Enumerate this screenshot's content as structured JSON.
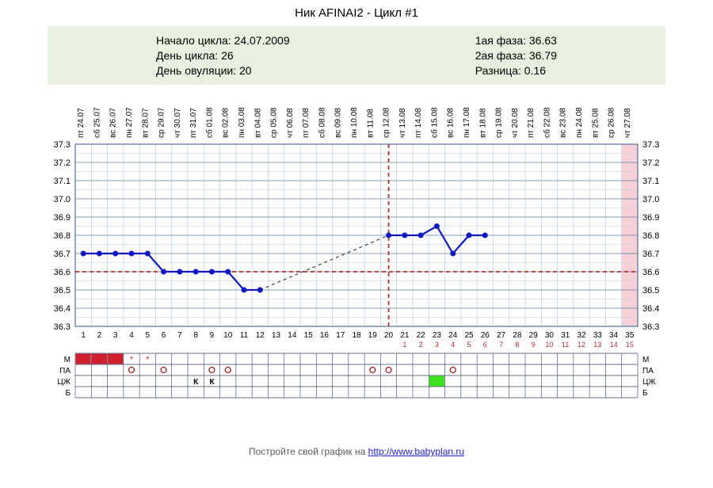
{
  "title": "Ник AFINAI2 - Цикл #1",
  "info_left": [
    "Начало цикла: 24.07.2009",
    "День цикла: 26",
    "День овуляции: 20"
  ],
  "info_right": [
    "1ая фаза: 36.63",
    "2ая фаза: 36.79",
    "Разница: 0.16"
  ],
  "footer_text": "Постройте свой график на ",
  "footer_url": "http://www.babyplan.ru",
  "chart": {
    "days": [
      "пт",
      "сб",
      "вс",
      "пн",
      "вт",
      "ср",
      "чт",
      "пт",
      "сб",
      "вс",
      "пн",
      "вт",
      "ср",
      "чт",
      "пт",
      "сб",
      "вс",
      "пн",
      "вт",
      "ср",
      "чт",
      "пт",
      "сб",
      "вс",
      "пн",
      "вт",
      "ср",
      "чт",
      "пт",
      "сб",
      "вс",
      "пн",
      "вт",
      "ср",
      "чт"
    ],
    "dates": [
      "24.07",
      "25.07",
      "26.07",
      "27.07",
      "28.07",
      "29.07",
      "30.07",
      "31.07",
      "01.08",
      "02.08",
      "03.08",
      "04.08",
      "05.08",
      "06.08",
      "07.08",
      "08.08",
      "09.08",
      "10.08",
      "11.08",
      "12.08",
      "13.08",
      "14.08",
      "15.08",
      "16.08",
      "17.08",
      "18.08",
      "19.08",
      "20.08",
      "21.08",
      "22.08",
      "23.08",
      "24.08",
      "25.08",
      "26.08",
      "27.08"
    ],
    "y_ticks": [
      37.3,
      37.2,
      37.1,
      37.0,
      36.9,
      36.8,
      36.7,
      36.6,
      36.5,
      36.4,
      36.3
    ],
    "ymin": 36.3,
    "ymax": 37.3,
    "series": [
      {
        "day": 1,
        "val": 36.7
      },
      {
        "day": 2,
        "val": 36.7
      },
      {
        "day": 3,
        "val": 36.7
      },
      {
        "day": 4,
        "val": 36.7
      },
      {
        "day": 5,
        "val": 36.7
      },
      {
        "day": 6,
        "val": 36.6
      },
      {
        "day": 7,
        "val": 36.6
      },
      {
        "day": 8,
        "val": 36.6
      },
      {
        "day": 9,
        "val": 36.6
      },
      {
        "day": 10,
        "val": 36.6
      },
      {
        "day": 11,
        "val": 36.5
      },
      {
        "day": 12,
        "val": 36.5
      }
    ],
    "series2": [
      {
        "day": 20,
        "val": 36.8
      },
      {
        "day": 21,
        "val": 36.8
      },
      {
        "day": 22,
        "val": 36.8
      },
      {
        "day": 23,
        "val": 36.85
      },
      {
        "day": 24,
        "val": 36.7
      },
      {
        "day": 25,
        "val": 36.8
      },
      {
        "day": 26,
        "val": 36.8
      }
    ],
    "dash_from": {
      "day": 12,
      "val": 36.5
    },
    "dash_to": {
      "day": 20,
      "val": 36.8
    },
    "coverline": 36.6,
    "ov_day": 20,
    "n_days": 35,
    "bottom_counts_start": 20,
    "line_color": "#1018c0",
    "marker_color": "#1018c0",
    "coverline_color": "#b03030",
    "ov_color": "#b03030",
    "grid_color": "#b8cde0",
    "major_grid_color": "#6080a0",
    "period_color": "#d02030",
    "pink_col_color": "#f7d0d8",
    "lime_color": "#40e020",
    "row_labels": [
      "М",
      "ПА",
      "ЦЖ",
      "Б"
    ],
    "menstruation_days": [
      1,
      2,
      3
    ],
    "star_days": [
      4,
      5
    ],
    "pa_days": [
      4,
      6,
      9,
      10,
      19,
      20,
      24
    ],
    "k_days": [
      8,
      9
    ],
    "lime_days": [
      23
    ]
  }
}
